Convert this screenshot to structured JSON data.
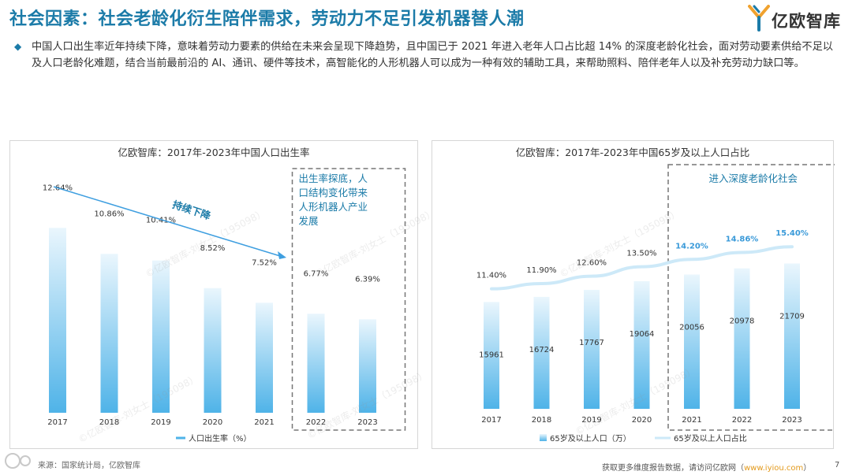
{
  "page": {
    "title": "社会因素：社会老龄化衍生陪伴需求，劳动力不足引发机器替人潮",
    "brand": "亿欧智库",
    "intro": "中国人口出生率近年持续下降，意味着劳动力要素的供给在未来会呈现下降趋势，且中国已于 2021 年进入老年人口占比超 14% 的深度老龄化社会，面对劳动要素供给不足以及人口老龄化难题，结合当前最前沿的 AI、通讯、硬件等技术，高智能化的人形机器人可以成为一种有效的辅助工具，来帮助照料、陪伴老年人以及补充劳动力缺口等。",
    "watermark": "©亿欧智库-刘女士（195098）",
    "source": "来源：国家统计局，亿欧智库",
    "footer_note": "获取更多维度报告数据，请访问亿欧网（",
    "footer_link": "www.iyiou.com",
    "footer_close": "）",
    "page_number": "7",
    "colors": {
      "title": "#1b7ba8",
      "bar_top": "#eaf6fd",
      "bar_bottom": "#4fb3e8",
      "arrow": "#3f9fe0",
      "line": "#cde9f8"
    }
  },
  "chart_data": [
    {
      "type": "bar",
      "title": "亿欧智库：2017年-2023年中国人口出生率",
      "categories": [
        "2017",
        "2018",
        "2019",
        "2020",
        "2021",
        "2022",
        "2023"
      ],
      "values": [
        12.64,
        10.86,
        10.41,
        8.52,
        7.52,
        6.77,
        6.39
      ],
      "value_labels": [
        "12.64%",
        "10.86%",
        "10.41%",
        "8.52%",
        "7.52%",
        "6.77%",
        "6.39%"
      ],
      "legend": [
        "人口出生率（%）"
      ],
      "annotation_trend": "持续下降",
      "annotation_box": "出生率探底，人口结构变化带来人形机器人产业发展",
      "highlight_categories": [
        "2022",
        "2023"
      ],
      "ylim": [
        0,
        14
      ]
    },
    {
      "type": "bar+line",
      "title": "亿欧智库：2017年-2023年中国65岁及以上人口占比",
      "categories": [
        "2017",
        "2018",
        "2019",
        "2020",
        "2021",
        "2022",
        "2023"
      ],
      "series": [
        {
          "name": "65岁及以上人口（万）",
          "type": "bar",
          "values": [
            15961,
            16724,
            17767,
            19064,
            20056,
            20978,
            21709
          ],
          "value_labels": [
            "15961",
            "16724",
            "17767",
            "19064",
            "20056",
            "20978",
            "21709"
          ],
          "ylim": [
            0,
            30000
          ]
        },
        {
          "name": "65岁及以上人口占比",
          "type": "line",
          "values": [
            11.4,
            11.9,
            12.6,
            13.5,
            14.2,
            14.86,
            15.4
          ],
          "value_labels": [
            "11.40%",
            "11.90%",
            "12.60%",
            "13.50%",
            "14.20%",
            "14.86%",
            "15.40%"
          ],
          "ylim": [
            0,
            25
          ]
        }
      ],
      "annotation_box": "进入深度老龄化社会",
      "highlight_categories": [
        "2021",
        "2022",
        "2023"
      ]
    }
  ]
}
